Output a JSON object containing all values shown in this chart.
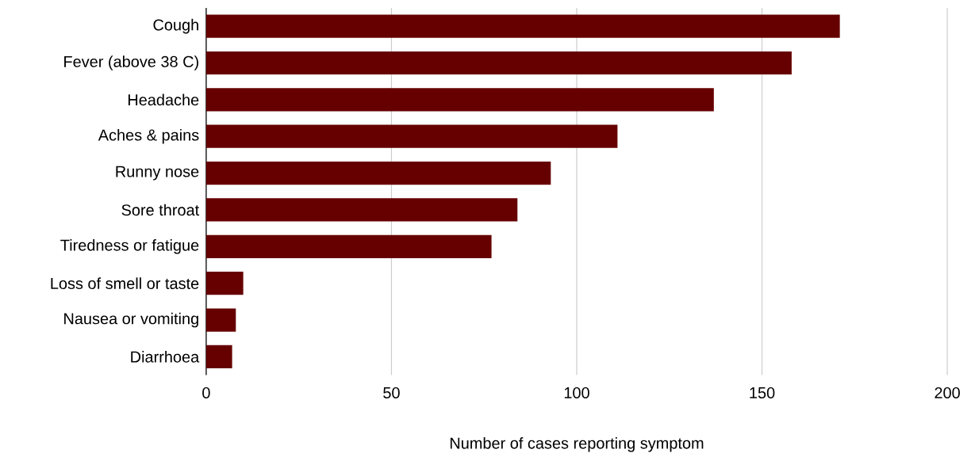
{
  "chart_data": {
    "type": "bar",
    "orientation": "horizontal",
    "xlabel": "Number of cases reporting symptom",
    "categories": [
      "Cough",
      "Fever (above 38 C)",
      "Headache",
      "Aches & pains",
      "Runny nose",
      "Sore throat",
      "Tiredness or fatigue",
      "Loss of smell or taste",
      "Nausea or vomiting",
      "Diarrhoea"
    ],
    "values": [
      171,
      158,
      137,
      111,
      93,
      84,
      77,
      10,
      8,
      7
    ],
    "color": "#660000",
    "xlim": [
      0,
      200
    ],
    "xticks": [
      0,
      50,
      100,
      150,
      200
    ],
    "grid": "x"
  }
}
